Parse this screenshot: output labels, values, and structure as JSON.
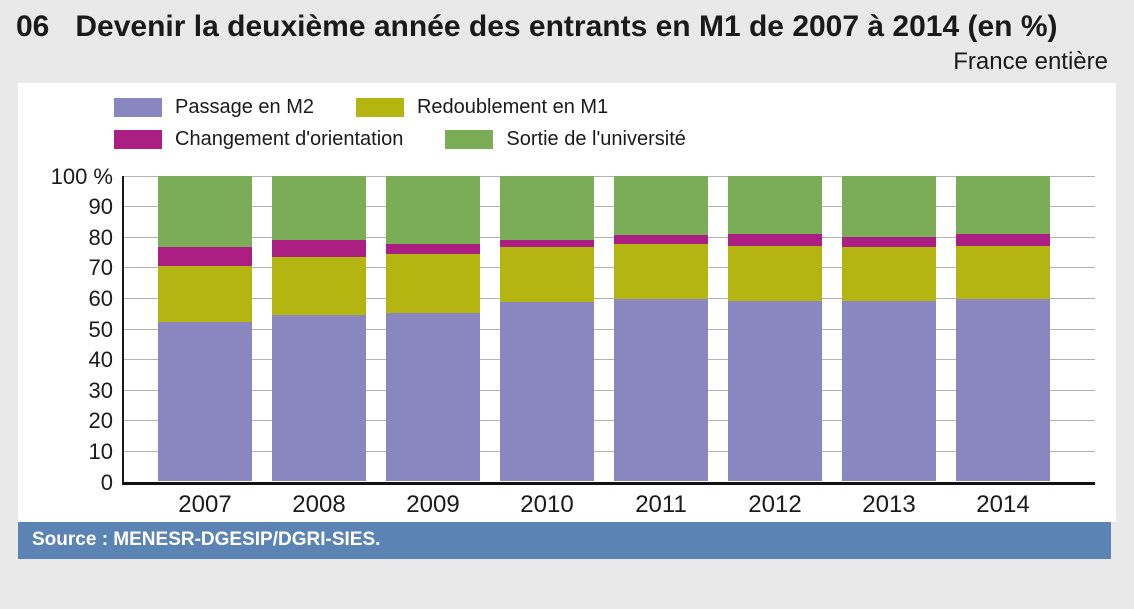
{
  "header": {
    "figure_number": "06",
    "title": "Devenir la deuxième année des entrants en M1 de 2007 à 2014 (en %)",
    "subtitle": "France entière"
  },
  "footer": {
    "source": "Source : MENESR-DGESIP/DGRI-SIES."
  },
  "colors": {
    "background": "#e9e9e9",
    "panel": "#ffffff",
    "source_bar": "#5b84b4",
    "axis": "#1a1a1a",
    "gridline": "#b3b3b3"
  },
  "chart_data": {
    "type": "bar",
    "subtype": "stacked-vertical",
    "title": "Devenir la deuxième année des entrants en M1 de 2007 à 2014 (en %)",
    "xlabel": "",
    "ylabel": "%",
    "ylim": [
      0,
      100
    ],
    "grid": true,
    "legend_position": "top",
    "y_ticks": [
      "100 %",
      "90",
      "80",
      "70",
      "60",
      "50",
      "40",
      "30",
      "20",
      "10",
      "0"
    ],
    "categories": [
      "2007",
      "2008",
      "2009",
      "2010",
      "2011",
      "2012",
      "2013",
      "2014"
    ],
    "series": [
      {
        "name": "Passage en M2",
        "color": "#8a86bf",
        "values": [
          52.0,
          54.5,
          55.0,
          58.5,
          59.5,
          59.0,
          59.0,
          59.5
        ]
      },
      {
        "name": "Redoublement en M1",
        "color": "#b5b512",
        "values": [
          18.5,
          19.0,
          19.5,
          18.0,
          18.0,
          18.0,
          17.5,
          17.5
        ]
      },
      {
        "name": "Changement d'orientation",
        "color": "#aa1f81",
        "values": [
          6.0,
          5.5,
          3.0,
          2.5,
          3.0,
          4.0,
          3.5,
          4.0
        ]
      },
      {
        "name": "Sortie de l'université",
        "color": "#7bac58",
        "values": [
          23.5,
          21.0,
          22.5,
          21.0,
          19.5,
          19.0,
          20.0,
          19.0
        ]
      }
    ],
    "legend_rows": [
      [
        0,
        1
      ],
      [
        2,
        3
      ]
    ]
  }
}
